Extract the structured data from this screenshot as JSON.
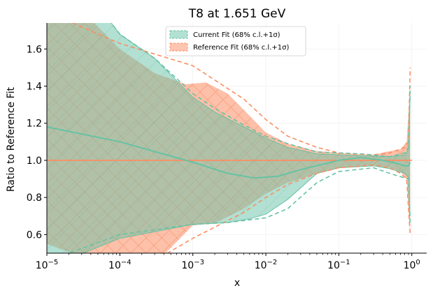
{
  "chart_data": {
    "type": "area",
    "title": "T8 at 1.651 GeV",
    "xlabel": "x",
    "ylabel": "Ratio to Reference Fit",
    "xscale": "log",
    "xlim": [
      1e-05,
      1.6
    ],
    "ylim": [
      0.5,
      1.74
    ],
    "xticks": [
      {
        "value": 1e-05,
        "base": "10",
        "exp": "−5"
      },
      {
        "value": 0.0001,
        "base": "10",
        "exp": "−4"
      },
      {
        "value": 0.001,
        "base": "10",
        "exp": "−3"
      },
      {
        "value": 0.01,
        "base": "10",
        "exp": "−2"
      },
      {
        "value": 0.1,
        "base": "10",
        "exp": "−1"
      },
      {
        "value": 1,
        "base": "10",
        "exp": "0"
      }
    ],
    "yticks": [
      "0.6",
      "0.8",
      "1.0",
      "1.2",
      "1.4",
      "1.6"
    ],
    "grid": "faint",
    "legend_position": "top-center",
    "series": [
      {
        "name": "Current Fit (68% c.l.+1σ)",
        "color": "#66c2a5",
        "central": [
          [
            1e-05,
            1.18
          ],
          [
            0.0001,
            1.1
          ],
          [
            0.001,
            0.99
          ],
          [
            0.003,
            0.93
          ],
          [
            0.007,
            0.905
          ],
          [
            0.015,
            0.915
          ],
          [
            0.03,
            0.95
          ],
          [
            0.1,
            1.0
          ],
          [
            0.2,
            1.015
          ],
          [
            0.4,
            1.0
          ],
          [
            0.6,
            0.985
          ],
          [
            0.8,
            0.97
          ],
          [
            0.9,
            0.97
          ],
          [
            0.95,
            0.99
          ]
        ],
        "band_upper": [
          [
            1e-05,
            2.3
          ],
          [
            3e-05,
            1.95
          ],
          [
            0.0001,
            1.68
          ],
          [
            0.0003,
            1.55
          ],
          [
            0.001,
            1.34
          ],
          [
            0.002,
            1.26
          ],
          [
            0.005,
            1.18
          ],
          [
            0.01,
            1.12
          ],
          [
            0.02,
            1.07
          ],
          [
            0.05,
            1.035
          ],
          [
            0.1,
            1.03
          ],
          [
            0.2,
            1.025
          ],
          [
            0.5,
            1.02
          ],
          [
            0.8,
            1.03
          ],
          [
            0.9,
            1.06
          ],
          [
            0.95,
            1.35
          ]
        ],
        "band_lower": [
          [
            1e-05,
            0.42
          ],
          [
            0.0001,
            0.58
          ],
          [
            0.001,
            0.655
          ],
          [
            0.003,
            0.665
          ],
          [
            0.006,
            0.685
          ],
          [
            0.01,
            0.71
          ],
          [
            0.02,
            0.79
          ],
          [
            0.05,
            0.93
          ],
          [
            0.1,
            0.96
          ],
          [
            0.3,
            0.97
          ],
          [
            0.5,
            0.955
          ],
          [
            0.8,
            0.93
          ],
          [
            0.9,
            0.91
          ],
          [
            0.95,
            0.7
          ]
        ],
        "dash_upper": [
          [
            1e-05,
            2.3
          ],
          [
            3e-05,
            1.95
          ],
          [
            0.0001,
            1.68
          ],
          [
            0.0003,
            1.55
          ],
          [
            0.001,
            1.36
          ],
          [
            0.002,
            1.28
          ],
          [
            0.005,
            1.19
          ],
          [
            0.01,
            1.13
          ],
          [
            0.02,
            1.09
          ],
          [
            0.05,
            1.045
          ],
          [
            0.1,
            1.04
          ],
          [
            0.2,
            1.035
          ],
          [
            0.5,
            1.02
          ],
          [
            0.8,
            1.04
          ],
          [
            0.9,
            1.07
          ],
          [
            0.95,
            1.4
          ]
        ],
        "dash_lower": [
          [
            1e-05,
            0.42
          ],
          [
            2e-05,
            0.5
          ],
          [
            0.0001,
            0.6
          ],
          [
            0.001,
            0.655
          ],
          [
            0.003,
            0.665
          ],
          [
            0.01,
            0.69
          ],
          [
            0.02,
            0.74
          ],
          [
            0.05,
            0.88
          ],
          [
            0.1,
            0.94
          ],
          [
            0.3,
            0.96
          ],
          [
            0.5,
            0.93
          ],
          [
            0.8,
            0.905
          ],
          [
            0.9,
            0.9
          ],
          [
            0.95,
            0.65
          ]
        ]
      },
      {
        "name": "Reference Fit (68% c.l.+1σ)",
        "color": "#fc8d62",
        "central": [
          [
            1e-05,
            1.0
          ],
          [
            1.0,
            1.0
          ]
        ],
        "band_upper": [
          [
            1e-05,
            2.0
          ],
          [
            0.0001,
            1.6
          ],
          [
            0.0003,
            1.47
          ],
          [
            0.0008,
            1.41
          ],
          [
            0.0015,
            1.42
          ],
          [
            0.003,
            1.36
          ],
          [
            0.006,
            1.24
          ],
          [
            0.01,
            1.15
          ],
          [
            0.02,
            1.09
          ],
          [
            0.05,
            1.05
          ],
          [
            0.1,
            1.04
          ],
          [
            0.3,
            1.03
          ],
          [
            0.5,
            1.05
          ],
          [
            0.7,
            1.06
          ],
          [
            0.85,
            1.1
          ],
          [
            0.95,
            1.4
          ]
        ],
        "band_lower": [
          [
            1e-05,
            0.55
          ],
          [
            3e-05,
            0.48
          ],
          [
            0.0001,
            0.42
          ],
          [
            0.0003,
            0.44
          ],
          [
            0.001,
            0.65
          ],
          [
            0.002,
            0.66
          ],
          [
            0.005,
            0.74
          ],
          [
            0.01,
            0.82
          ],
          [
            0.02,
            0.88
          ],
          [
            0.05,
            0.93
          ],
          [
            0.1,
            0.96
          ],
          [
            0.3,
            0.975
          ],
          [
            0.5,
            0.96
          ],
          [
            0.7,
            0.94
          ],
          [
            0.85,
            0.9
          ],
          [
            0.95,
            0.6
          ]
        ],
        "dash_upper": [
          [
            1e-05,
            1.8
          ],
          [
            0.0001,
            1.63
          ],
          [
            0.001,
            1.51
          ],
          [
            0.005,
            1.33
          ],
          [
            0.01,
            1.22
          ],
          [
            0.02,
            1.13
          ],
          [
            0.05,
            1.07
          ],
          [
            0.1,
            1.04
          ],
          [
            0.3,
            1.03
          ],
          [
            0.5,
            1.04
          ],
          [
            0.8,
            1.07
          ],
          [
            0.9,
            1.1
          ],
          [
            0.95,
            1.5
          ]
        ],
        "dash_lower": [
          [
            1e-05,
            0.2
          ],
          [
            0.0001,
            0.35
          ],
          [
            0.001,
            0.58
          ],
          [
            0.005,
            0.72
          ],
          [
            0.01,
            0.8
          ],
          [
            0.02,
            0.87
          ],
          [
            0.05,
            0.93
          ],
          [
            0.1,
            0.96
          ],
          [
            0.3,
            0.975
          ],
          [
            0.5,
            0.96
          ],
          [
            0.7,
            0.93
          ],
          [
            0.85,
            0.9
          ],
          [
            0.95,
            0.6
          ]
        ]
      }
    ]
  }
}
